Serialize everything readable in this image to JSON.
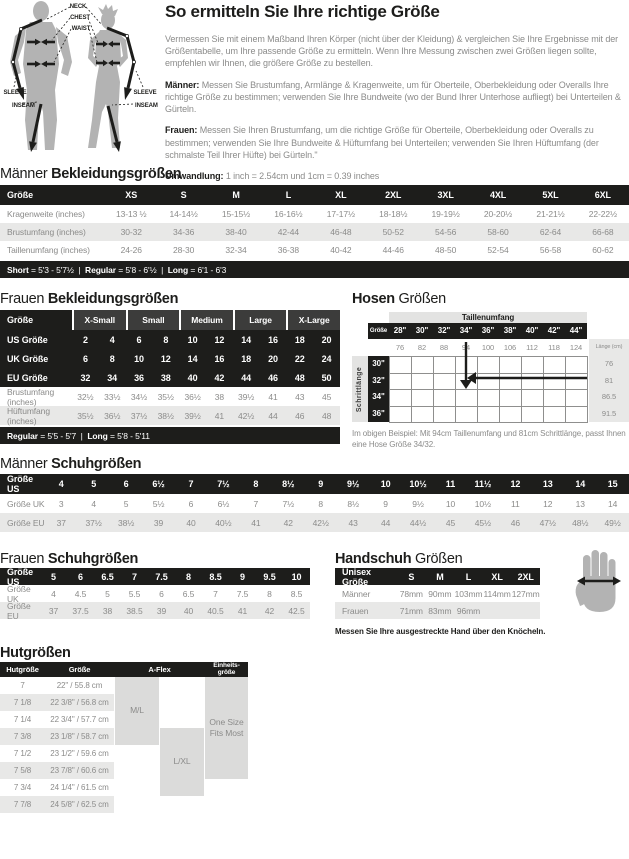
{
  "intro": {
    "title": "So ermitteln Sie Ihre richtige Größe",
    "p1": "Vermessen Sie mit einem Maßband Ihren Körper (nicht über der Kleidung) & vergleichen Sie Ihre Ergebnisse mit der Größentabelle, um Ihre passende Größe zu ermitteln. Wenn Ihre Messung zwischen zwei Größen liegen sollte, empfehlen wir Ihnen, die größere Größe zu bestellen.",
    "men_label": "Männer:",
    "men_text": "Messen Sie Brustumfang, Armlänge & Kragenweite, um für Oberteile, Oberbekleidung oder Overalls Ihre richtige Größe zu bestimmen; verwenden Sie Ihre Bundweite (wo der Bund Ihrer Unterhose aufliegt) bei Unterteilen & Gürteln.",
    "women_label": "Frauen:",
    "women_text": "Messen Sie Ihren Brustumfang, um die richtige  Größe für Oberteile, Oberbekleidung oder Overalls zu bestimmen; verwenden Sie Ihre Bundweite & Hüftumfang  bei Unterteilen; verwenden Sie Ihren Hüftumfang (der schmalste Teil Ihrer Hüfte) bei Gürteln.\"",
    "conv_label": "Umwandlung:",
    "conv_text": "1 inch = 2.54cm und 1cm = 0.39 inches"
  },
  "figure": {
    "neck": "NECK",
    "chest": "CHEST",
    "waist": "WAIST",
    "sleeve": "SLEEVE",
    "inseam": "INSEAM"
  },
  "men_clothing": {
    "heading": [
      {
        "t": "Männer ",
        "b": false
      },
      {
        "t": "Bekleidungsgrößen",
        "b": true
      }
    ],
    "header": {
      "label": "Größe",
      "cols": [
        "XS",
        "S",
        "M",
        "L",
        "XL",
        "2XL",
        "3XL",
        "4XL",
        "5XL",
        "6XL"
      ]
    },
    "rows": [
      {
        "label": "Kragenweite (inches)",
        "values": [
          "13-13 ½",
          "14-14½",
          "15-15½",
          "16-16½",
          "17-17½",
          "18-18½",
          "19-19½",
          "20-20½",
          "21-21½",
          "22-22½"
        ]
      },
      {
        "label": "Brustumfang (inches)",
        "values": [
          "30-32",
          "34-36",
          "38-40",
          "42-44",
          "46-48",
          "50-52",
          "54-56",
          "58-60",
          "62-64",
          "66-68"
        ]
      },
      {
        "label": "Taillenumfang (inches)",
        "values": [
          "24-26",
          "28-30",
          "32-34",
          "36-38",
          "40-42",
          "44-46",
          "48-50",
          "52-54",
          "56-58",
          "60-62"
        ]
      }
    ],
    "footer": [
      {
        "label": "Short",
        "text": "5'3 - 5'7½"
      },
      {
        "label": "Regular",
        "text": "5'8 - 6'½"
      },
      {
        "label": "Long",
        "text": "6'1 - 6'3"
      }
    ]
  },
  "women_clothing": {
    "heading": [
      {
        "t": "Frauen ",
        "b": false
      },
      {
        "t": "Bekleidungsgrößen",
        "b": true
      }
    ],
    "size_label": "Größe",
    "groups": [
      "X-Small",
      "Small",
      "Medium",
      "Large",
      "X-Large"
    ],
    "size_rows": [
      {
        "label": "US Größe",
        "values": [
          "2",
          "4",
          "6",
          "8",
          "10",
          "12",
          "14",
          "16",
          "18",
          "20"
        ]
      },
      {
        "label": "UK Größe",
        "values": [
          "6",
          "8",
          "10",
          "12",
          "14",
          "16",
          "18",
          "20",
          "22",
          "24"
        ]
      },
      {
        "label": "EU Größe",
        "values": [
          "32",
          "34",
          "36",
          "38",
          "40",
          "42",
          "44",
          "46",
          "48",
          "50"
        ]
      }
    ],
    "measure_rows": [
      {
        "label": "Brustumfang (inches)",
        "values": [
          "32½",
          "33½",
          "34½",
          "35½",
          "36½",
          "38",
          "39½",
          "41",
          "43",
          "45"
        ]
      },
      {
        "label": "Hüftumfang (inches)",
        "values": [
          "35½",
          "36½",
          "37½",
          "38½",
          "39½",
          "41",
          "42½",
          "44",
          "46",
          "48"
        ]
      }
    ],
    "footer": [
      {
        "label": "Regular",
        "text": "5'5 - 5'7"
      },
      {
        "label": "Long",
        "text": "5'8 - 5'11"
      }
    ]
  },
  "hosen": {
    "heading": [
      {
        "t": "Hosen ",
        "b": true
      },
      {
        "t": "Größen",
        "b": false
      }
    ],
    "taillenumfang_label": "Taillenumfang",
    "size_label": "Größe",
    "waist_sizes": [
      "28\"",
      "30\"",
      "32\"",
      "34\"",
      "36\"",
      "38\"",
      "40\"",
      "42\"",
      "44\""
    ],
    "waist_cm": [
      "76",
      "82",
      "88",
      "94",
      "100",
      "106",
      "112",
      "118",
      "124"
    ],
    "lange_label": "Länge (cm)",
    "schrittlange_label": "Schrittlänge",
    "inseam_sizes": [
      "30\"",
      "32\"",
      "34\"",
      "36\""
    ],
    "inseam_cm": [
      "76",
      "81",
      "86.5",
      "91.5"
    ],
    "caption": "Im obigen Beispiel: Mit 94cm Taillenumfang und 81cm Schrittlänge, passt Ihnen eine Hose Größe 34/32."
  },
  "men_shoes": {
    "heading": [
      {
        "t": "Männer ",
        "b": false
      },
      {
        "t": "Schuhgrößen",
        "b": true
      }
    ],
    "header": {
      "label": "Größe US",
      "cols": [
        "4",
        "5",
        "6",
        "6½",
        "7",
        "7½",
        "8",
        "8½",
        "9",
        "9½",
        "10",
        "10½",
        "11",
        "11½",
        "12",
        "13",
        "14",
        "15"
      ]
    },
    "rows": [
      {
        "label": "Größe UK",
        "values": [
          "3",
          "4",
          "5",
          "5½",
          "6",
          "6½",
          "7",
          "7½",
          "8",
          "8½",
          "9",
          "9½",
          "10",
          "10½",
          "11",
          "12",
          "13",
          "14"
        ]
      },
      {
        "label": "Größe EU",
        "values": [
          "37",
          "37½",
          "38½",
          "39",
          "40",
          "40½",
          "41",
          "42",
          "42½",
          "43",
          "44",
          "44½",
          "45",
          "45½",
          "46",
          "47½",
          "48½",
          "49½"
        ]
      }
    ]
  },
  "women_shoes": {
    "heading": [
      {
        "t": "Frauen ",
        "b": false
      },
      {
        "t": "Schuhgrößen",
        "b": true
      }
    ],
    "header": {
      "label": "Größe US",
      "cols": [
        "5",
        "6",
        "6.5",
        "7",
        "7.5",
        "8",
        "8.5",
        "9",
        "9.5",
        "10"
      ]
    },
    "rows": [
      {
        "label": "Größe UK",
        "values": [
          "4",
          "4.5",
          "5",
          "5.5",
          "6",
          "6.5",
          "7",
          "7.5",
          "8",
          "8.5"
        ]
      },
      {
        "label": "Größe EU",
        "values": [
          "37",
          "37.5",
          "38",
          "38.5",
          "39",
          "40",
          "40.5",
          "41",
          "42",
          "42.5"
        ]
      }
    ]
  },
  "gloves": {
    "heading": [
      {
        "t": "Handschuh ",
        "b": true
      },
      {
        "t": "Größen",
        "b": false
      }
    ],
    "table": {
      "header": {
        "label": "Unisex Größe",
        "cols": [
          "S",
          "M",
          "L",
          "XL",
          "2XL"
        ]
      },
      "rows": [
        {
          "label": "Männer",
          "values": [
            "78mm",
            "90mm",
            "103mm",
            "114mm",
            "127mm"
          ]
        },
        {
          "label": "Frauen",
          "values": [
            "71mm",
            "83mm",
            "96mm",
            "",
            ""
          ]
        }
      ]
    },
    "caption": "Messen Sie Ihre ausgestreckte Hand über den Knöcheln."
  },
  "hat": {
    "heading": [
      {
        "t": "Hutgrößen",
        "b": true
      }
    ],
    "headers": [
      "Hutgröße",
      "Größe",
      "A-Flex",
      "Einheits-\ngröße"
    ],
    "rows": [
      [
        "7",
        "22\" / 55.8 cm"
      ],
      [
        "7 1/8",
        "22 3/8\" / 56.8 cm"
      ],
      [
        "7 1/4",
        "22 3/4\" / 57.7 cm"
      ],
      [
        "7 3/8",
        "23 1/8\" / 58.7 cm"
      ],
      [
        "7 1/2",
        "23 1/2\" / 59.6 cm"
      ],
      [
        "7 5/8",
        "23 7/8\" / 60.6 cm"
      ],
      [
        "7 3/4",
        "24 1/4\" / 61.5 cm"
      ],
      [
        "7 7/8",
        "24 5/8\" / 62.5 cm"
      ]
    ],
    "blocks": {
      "ml": "M/L",
      "lxl": "L/XL",
      "one_size": "One Size Fits Most"
    }
  }
}
